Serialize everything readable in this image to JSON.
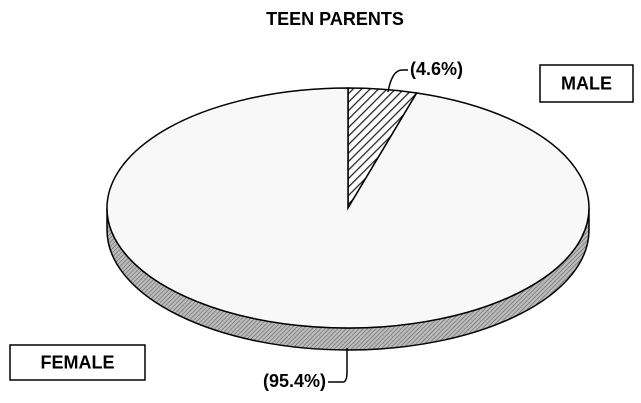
{
  "chart_data": {
    "type": "pie",
    "title": "TEEN PARENTS",
    "categories": [
      "MALE",
      "FEMALE"
    ],
    "values": [
      4.6,
      95.4
    ],
    "value_labels": [
      "(4.6%)",
      "(95.4%)"
    ],
    "colors": [
      "#222222",
      "#f8f8f8"
    ]
  }
}
